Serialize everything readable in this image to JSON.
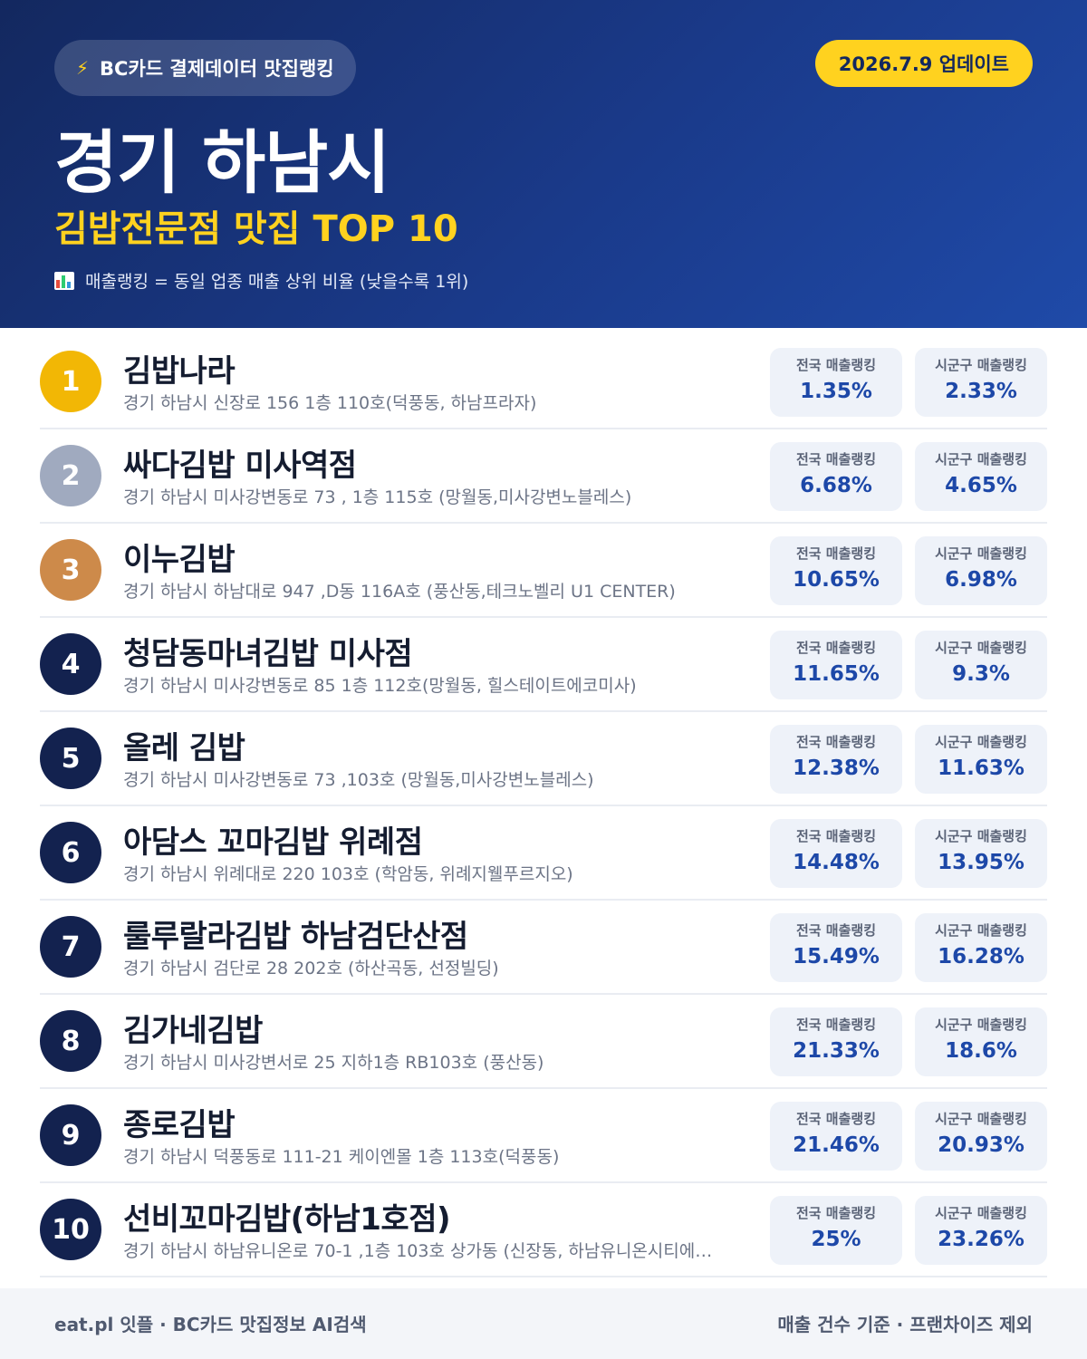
{
  "header": {
    "source_badge": "BC카드 결제데이터 맛집랭킹",
    "source_icon": "lightning-icon",
    "update_badge": "2026.7.9 업데이트",
    "region_title": "경기 하남시",
    "subtitle": "김밥전문점 맛집 TOP 10",
    "note_icon": "bar-chart-icon",
    "note": "매출랭킹 = 동일 업종 매출 상위 비율 (낮을수록 1위)"
  },
  "labels": {
    "national": "전국 매출랭킹",
    "local": "시군구 매출랭킹"
  },
  "colors": {
    "gold": "#f2b705",
    "silver": "#a0aabf",
    "bronze": "#cd8a4a",
    "navy": "#13224f",
    "accent": "#ffd21f"
  },
  "items": [
    {
      "rank": "1",
      "name": "김밥나라",
      "address": "경기 하남시 신장로 156 1층 110호(덕풍동, 하남프라자)",
      "national": "1.35%",
      "local": "2.33%"
    },
    {
      "rank": "2",
      "name": "싸다김밥 미사역점",
      "address": "경기 하남시 미사강변동로 73 , 1층 115호 (망월동,미사강변노블레스)",
      "national": "6.68%",
      "local": "4.65%"
    },
    {
      "rank": "3",
      "name": "이누김밥",
      "address": "경기 하남시 하남대로 947 ,D동 116A호 (풍산동,테크노벨리 U1 CENTER)",
      "national": "10.65%",
      "local": "6.98%"
    },
    {
      "rank": "4",
      "name": "청담동마녀김밥 미사점",
      "address": "경기 하남시 미사강변동로 85 1층 112호(망월동, 힐스테이트에코미사)",
      "national": "11.65%",
      "local": "9.3%"
    },
    {
      "rank": "5",
      "name": "올레 김밥",
      "address": "경기 하남시 미사강변동로 73 ,103호 (망월동,미사강변노블레스)",
      "national": "12.38%",
      "local": "11.63%"
    },
    {
      "rank": "6",
      "name": "아담스 꼬마김밥 위례점",
      "address": "경기 하남시 위례대로 220 103호 (학암동, 위례지웰푸르지오)",
      "national": "14.48%",
      "local": "13.95%"
    },
    {
      "rank": "7",
      "name": "룰루랄라김밥 하남검단산점",
      "address": "경기 하남시 검단로 28 202호 (하산곡동, 선정빌딩)",
      "national": "15.49%",
      "local": "16.28%"
    },
    {
      "rank": "8",
      "name": "김가네김밥",
      "address": "경기 하남시 미사강변서로 25 지하1층 RB103호 (풍산동)",
      "national": "21.33%",
      "local": "18.6%"
    },
    {
      "rank": "9",
      "name": "종로김밥",
      "address": "경기 하남시 덕풍동로 111-21 케이엔몰 1층 113호(덕풍동)",
      "national": "21.46%",
      "local": "20.93%"
    },
    {
      "rank": "10",
      "name": "선비꼬마김밥(하남1호점)",
      "address": "경기 하남시 하남유니온로 70-1 ,1층 103호 상가동 (신장동, 하남유니온시티에…",
      "national": "25%",
      "local": "23.26%"
    }
  ],
  "footer": {
    "left": "eat.pl 잇플 · BC카드 맛집정보 AI검색",
    "right": "매출 건수 기준 · 프랜차이즈 제외"
  }
}
